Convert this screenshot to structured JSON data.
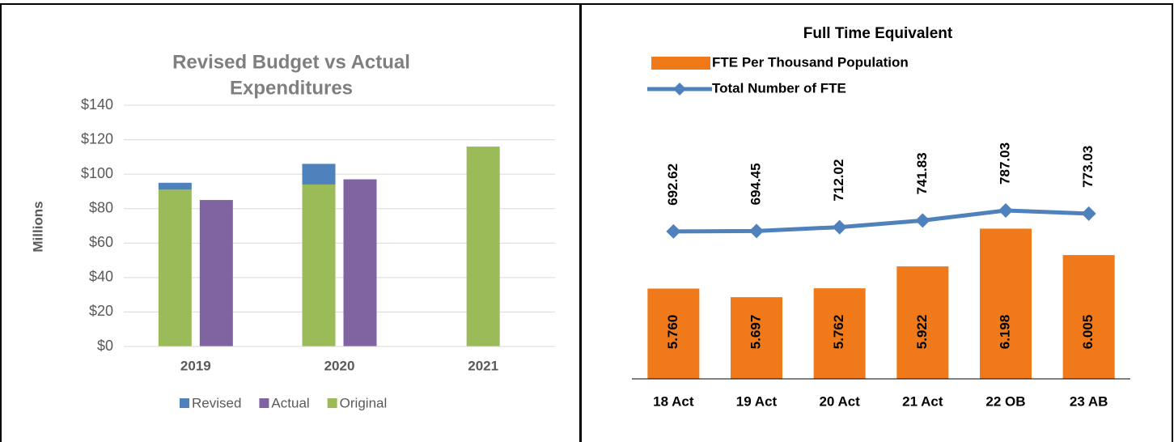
{
  "chart_data": [
    {
      "type": "stacked_bar",
      "title": [
        "Revised Budget vs Actual",
        "Expenditures"
      ],
      "y_label": "Millions",
      "categories": [
        "2019",
        "2020",
        "2021"
      ],
      "series": [
        {
          "name": "Revised",
          "color": "#4f81bd",
          "stack": "budget",
          "values": [
            4,
            12,
            null
          ]
        },
        {
          "name": "Actual",
          "color": "#8064a2",
          "stack": "actual",
          "values": [
            85,
            97,
            null
          ]
        },
        {
          "name": "Original",
          "color": "#9bbb59",
          "stack": "budget",
          "values": [
            91,
            94,
            116
          ]
        }
      ],
      "ylim": [
        0,
        140
      ],
      "yticks": [
        {
          "value": 0,
          "label": "$0"
        },
        {
          "value": 20,
          "label": "$20"
        },
        {
          "value": 40,
          "label": "$40"
        },
        {
          "value": 60,
          "label": "$60"
        },
        {
          "value": 80,
          "label": "$80"
        },
        {
          "value": 100,
          "label": "$100"
        },
        {
          "value": 120,
          "label": "$120"
        },
        {
          "value": 140,
          "label": "$140"
        }
      ],
      "grid": true,
      "legend": "bottom"
    },
    {
      "type": "bar_line",
      "title": "Full Time Equivalent",
      "categories": [
        "18 Act",
        "19 Act",
        "20 Act",
        "21 Act",
        "22 OB",
        "23 AB"
      ],
      "series": [
        {
          "name": "FTE Per Thousand Population",
          "color": "#f07a1a",
          "kind": "bar",
          "axis": "y",
          "values": [
            5.76,
            5.697,
            5.762,
            5.922,
            6.198,
            6.005
          ],
          "value_labels": [
            "5.760",
            "5.697",
            "5.762",
            "5.922",
            "6.198",
            "6.005"
          ]
        },
        {
          "name": "Total Number of FTE",
          "color": "#4f81bd",
          "kind": "line",
          "axis": "y2",
          "values": [
            692.62,
            694.45,
            712.02,
            741.83,
            787.03,
            773.03
          ]
        }
      ],
      "ylim": [
        5.1,
        7.1
      ],
      "y2lim": [
        30,
        1260
      ],
      "legend": "top"
    }
  ]
}
